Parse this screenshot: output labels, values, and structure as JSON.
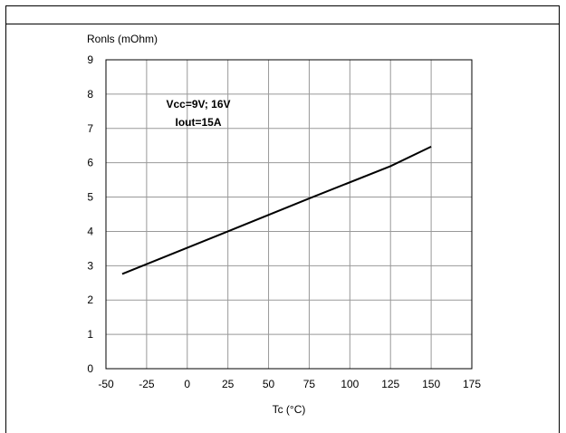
{
  "chart_data": {
    "type": "line",
    "ylabel": "Ronls (mOhm)",
    "xlabel": "Tc (°C)",
    "annotations": [
      "Vcc=9V; 16V",
      "Iout=15A"
    ],
    "xlim": [
      -50,
      175
    ],
    "ylim": [
      0,
      9
    ],
    "x_ticks": [
      -50,
      -25,
      0,
      25,
      50,
      75,
      100,
      125,
      150,
      175
    ],
    "y_ticks": [
      0,
      1,
      2,
      3,
      4,
      5,
      6,
      7,
      8,
      9
    ],
    "grid": true,
    "series": [
      {
        "x": [
          -40,
          25,
          75,
          125,
          150
        ],
        "y": [
          2.76,
          4.0,
          4.96,
          5.9,
          6.47
        ]
      }
    ]
  }
}
